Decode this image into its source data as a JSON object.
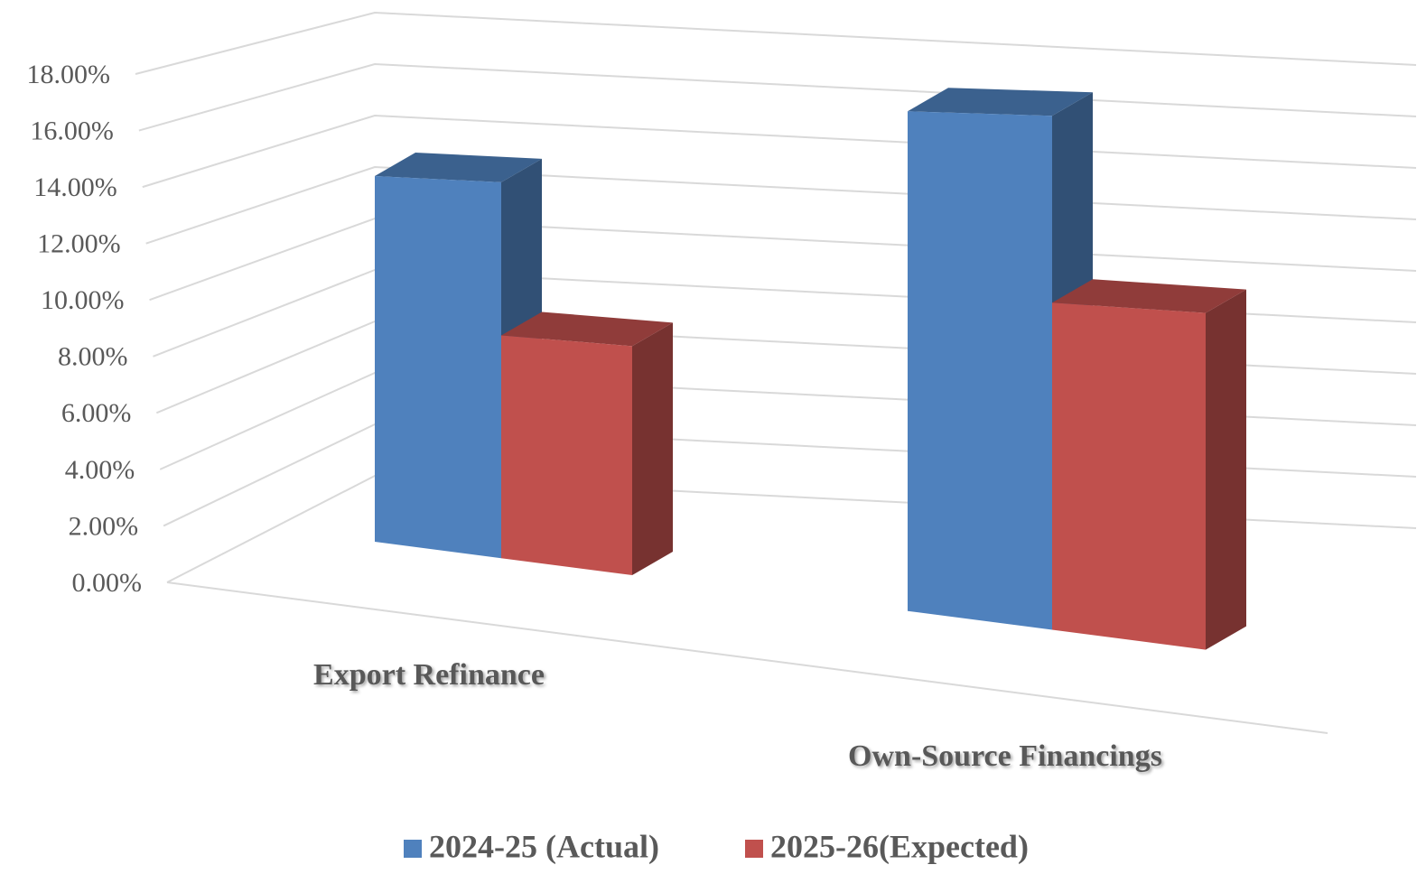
{
  "chart_data": {
    "type": "bar3d",
    "categories": [
      "Export Refinance",
      "Own-Source Financings"
    ],
    "series": [
      {
        "name": "2024-25 (Actual)",
        "color": "#4f81bd",
        "values": [
          13.5,
          16.5
        ]
      },
      {
        "name": "2025-26(Expected)",
        "color": "#c0504d",
        "values": [
          8.0,
          10.5
        ]
      }
    ],
    "ylim": [
      0,
      18
    ],
    "yticks": [
      {
        "value": 0,
        "label": "0.00%"
      },
      {
        "value": 2,
        "label": "2.00%"
      },
      {
        "value": 4,
        "label": "4.00%"
      },
      {
        "value": 6,
        "label": "6.00%"
      },
      {
        "value": 8,
        "label": "8.00%"
      },
      {
        "value": 10,
        "label": "10.00%"
      },
      {
        "value": 12,
        "label": "12.00%"
      },
      {
        "value": 14,
        "label": "14.00%"
      },
      {
        "value": 16,
        "label": "16.00%"
      },
      {
        "value": 18,
        "label": "18.00%"
      }
    ],
    "grid": true,
    "legend": "bottom"
  }
}
